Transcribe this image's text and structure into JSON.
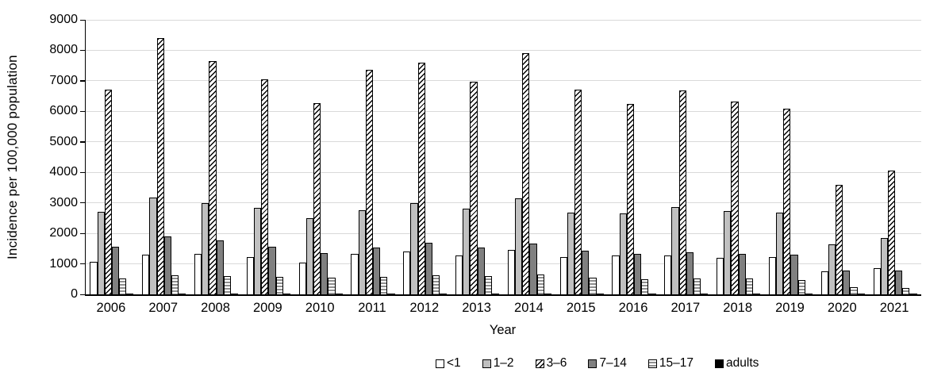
{
  "chart_data": {
    "type": "bar",
    "title": "",
    "xlabel": "Year",
    "ylabel": "Incidence per 100,000 population",
    "ylim": [
      0,
      9000
    ],
    "y_ticks": [
      0,
      1000,
      2000,
      3000,
      4000,
      5000,
      6000,
      7000,
      8000,
      9000
    ],
    "grid": true,
    "gridline_color": "#d9d9d9",
    "axis_color": "#000000",
    "legend_position": "bottom",
    "categories": [
      "2006",
      "2007",
      "2008",
      "2009",
      "2010",
      "2011",
      "2012",
      "2013",
      "2014",
      "2015",
      "2016",
      "2017",
      "2018",
      "2019",
      "2020",
      "2021"
    ],
    "series": [
      {
        "name": "<1",
        "pattern": "solid",
        "fill": "#ffffff",
        "values": [
          1070,
          1310,
          1340,
          1220,
          1050,
          1340,
          1400,
          1270,
          1460,
          1220,
          1280,
          1270,
          1200,
          1230,
          760,
          850
        ]
      },
      {
        "name": "1–2",
        "pattern": "solid",
        "fill": "#c0c0c0",
        "values": [
          2700,
          3180,
          3000,
          2840,
          2510,
          2760,
          2990,
          2810,
          3150,
          2680,
          2650,
          2850,
          2720,
          2690,
          1630,
          1850
        ]
      },
      {
        "name": "3–6",
        "pattern": "diagonal-hatch",
        "fill": "#ffffff",
        "values": [
          6720,
          8400,
          7650,
          7050,
          6280,
          7360,
          7600,
          6960,
          7900,
          6700,
          6250,
          6680,
          6320,
          6080,
          3600,
          4060
        ]
      },
      {
        "name": "7–14",
        "pattern": "solid",
        "fill": "#808080",
        "values": [
          1560,
          1890,
          1780,
          1550,
          1360,
          1540,
          1690,
          1530,
          1670,
          1440,
          1340,
          1370,
          1340,
          1310,
          780,
          790
        ]
      },
      {
        "name": "15–17",
        "pattern": "horizontal-stripes",
        "fill": "#ffffff",
        "values": [
          530,
          630,
          590,
          570,
          550,
          580,
          620,
          590,
          650,
          550,
          490,
          520,
          530,
          470,
          240,
          220
        ]
      },
      {
        "name": "adults",
        "pattern": "solid",
        "fill": "#000000",
        "values": [
          30,
          35,
          35,
          30,
          25,
          30,
          30,
          30,
          30,
          30,
          25,
          25,
          25,
          25,
          15,
          20
        ]
      }
    ]
  }
}
